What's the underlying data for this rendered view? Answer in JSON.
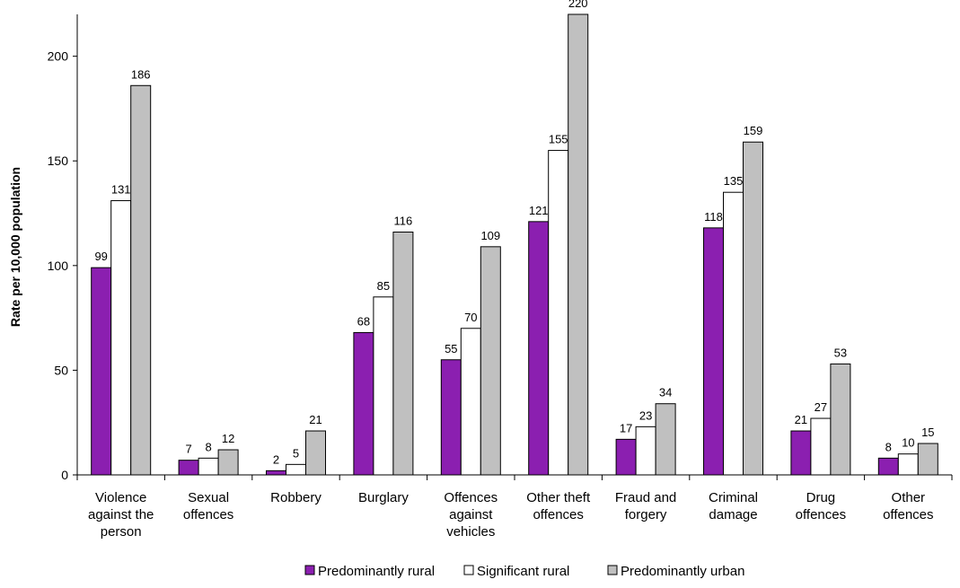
{
  "chart_data": {
    "type": "bar",
    "ylabel": "Rate per 10,000 population",
    "ylim": [
      0,
      220
    ],
    "yticks": [
      0,
      50,
      100,
      150,
      200
    ],
    "grid": false,
    "legend_position": "bottom",
    "categories": [
      [
        "Violence",
        "against the",
        "person"
      ],
      [
        "Sexual",
        "offences"
      ],
      [
        "Robbery"
      ],
      [
        "Burglary"
      ],
      [
        "Offences",
        "against",
        "vehicles"
      ],
      [
        "Other theft",
        "offences"
      ],
      [
        "Fraud and",
        "forgery"
      ],
      [
        "Criminal",
        "damage"
      ],
      [
        "Drug",
        "offences"
      ],
      [
        "Other",
        "offences"
      ]
    ],
    "series": [
      {
        "name": "Predominantly rural",
        "color": "#8B1FB0",
        "values": [
          99,
          7,
          2,
          68,
          55,
          121,
          17,
          118,
          21,
          8
        ]
      },
      {
        "name": "Significant rural",
        "color": "#FFFFFF",
        "values": [
          131,
          8,
          5,
          85,
          70,
          155,
          23,
          135,
          27,
          10
        ]
      },
      {
        "name": "Predominantly urban",
        "color": "#C0C0C0",
        "values": [
          186,
          12,
          21,
          116,
          109,
          220,
          34,
          159,
          53,
          15
        ]
      }
    ]
  }
}
